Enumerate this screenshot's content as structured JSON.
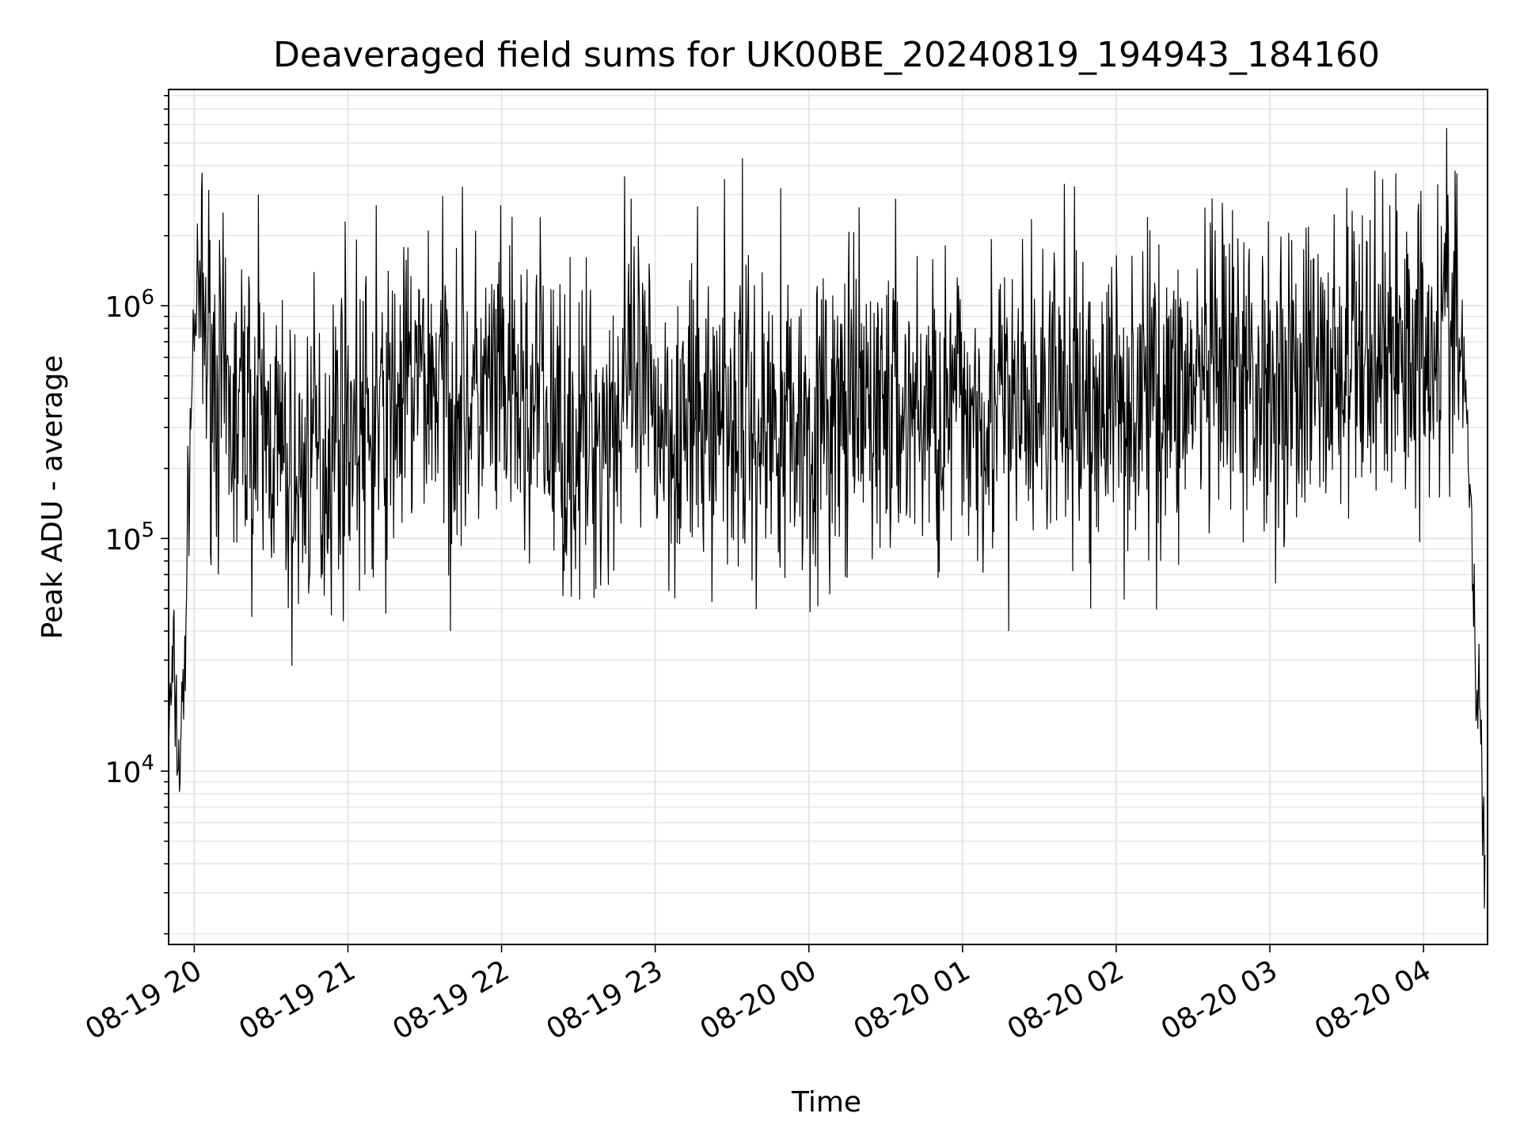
{
  "chart_data": {
    "type": "line",
    "title": "Deaveraged field sums for UK00BE_20240819_194943_184160",
    "xlabel": "Time",
    "ylabel": "Peak ADU - average",
    "yscale": "log",
    "ylim": [
      1800,
      8500000
    ],
    "xlim": [
      "2024-08-19 19:50",
      "2024-08-20 04:25"
    ],
    "x_ticks": [
      {
        "label": "08-19 20",
        "time": "2024-08-19 20:00"
      },
      {
        "label": "08-19 21",
        "time": "2024-08-19 21:00"
      },
      {
        "label": "08-19 22",
        "time": "2024-08-19 22:00"
      },
      {
        "label": "08-19 23",
        "time": "2024-08-19 23:00"
      },
      {
        "label": "08-20 00",
        "time": "2024-08-20 00:00"
      },
      {
        "label": "08-20 01",
        "time": "2024-08-20 01:00"
      },
      {
        "label": "08-20 02",
        "time": "2024-08-20 02:00"
      },
      {
        "label": "08-20 03",
        "time": "2024-08-20 03:00"
      },
      {
        "label": "08-20 04",
        "time": "2024-08-20 04:00"
      }
    ],
    "y_ticks": [
      {
        "base": "10",
        "exp": "4",
        "value": 10000
      },
      {
        "base": "10",
        "exp": "5",
        "value": 100000
      },
      {
        "base": "10",
        "exp": "6",
        "value": 1000000
      }
    ],
    "grid": true,
    "line_color": "#000000",
    "grid_color": "#e6e6e6",
    "series": [
      {
        "x": [
          "2024-08-19 19:50",
          "2024-08-19 19:52",
          "2024-08-19 19:54",
          "2024-08-19 19:56",
          "2024-08-19 19:58",
          "2024-08-19 20:00",
          "2024-08-19 20:02",
          "2024-08-19 20:05",
          "2024-08-19 20:08",
          "2024-08-19 20:12",
          "2024-08-19 20:16",
          "2024-08-19 20:20",
          "2024-08-19 20:25",
          "2024-08-19 20:30",
          "2024-08-19 20:35",
          "2024-08-19 20:40",
          "2024-08-19 20:45",
          "2024-08-19 20:50",
          "2024-08-19 20:55",
          "2024-08-19 21:00",
          "2024-08-19 21:05",
          "2024-08-19 21:10",
          "2024-08-19 21:15",
          "2024-08-19 21:20",
          "2024-08-19 21:30",
          "2024-08-19 21:40",
          "2024-08-19 21:50",
          "2024-08-19 22:00",
          "2024-08-19 22:10",
          "2024-08-19 22:20",
          "2024-08-19 22:30",
          "2024-08-19 22:40",
          "2024-08-19 22:50",
          "2024-08-19 23:00",
          "2024-08-19 23:10",
          "2024-08-19 23:20",
          "2024-08-19 23:30",
          "2024-08-19 23:40",
          "2024-08-19 23:50",
          "2024-08-20 00:00",
          "2024-08-20 00:10",
          "2024-08-20 00:20",
          "2024-08-20 00:30",
          "2024-08-20 00:40",
          "2024-08-20 00:50",
          "2024-08-20 01:00",
          "2024-08-20 01:10",
          "2024-08-20 01:20",
          "2024-08-20 01:30",
          "2024-08-20 01:40",
          "2024-08-20 01:50",
          "2024-08-20 02:00",
          "2024-08-20 02:10",
          "2024-08-20 02:20",
          "2024-08-20 02:30",
          "2024-08-20 02:40",
          "2024-08-20 02:50",
          "2024-08-20 03:00",
          "2024-08-20 03:10",
          "2024-08-20 03:20",
          "2024-08-20 03:30",
          "2024-08-20 03:40",
          "2024-08-20 03:50",
          "2024-08-20 04:00",
          "2024-08-20 04:05",
          "2024-08-20 04:10",
          "2024-08-20 04:15",
          "2024-08-20 04:18",
          "2024-08-20 04:20",
          "2024-08-20 04:22",
          "2024-08-20 04:24"
        ],
        "y": [
          15000,
          28000,
          10000,
          22000,
          200000,
          900000,
          1000000,
          700000,
          500000,
          350000,
          300000,
          400000,
          250000,
          300000,
          200000,
          150000,
          250000,
          200000,
          300000,
          350000,
          300000,
          250000,
          300000,
          400000,
          500000,
          450000,
          400000,
          400000,
          350000,
          300000,
          250000,
          300000,
          400000,
          350000,
          300000,
          320000,
          350000,
          300000,
          330000,
          300000,
          320000,
          350000,
          380000,
          360000,
          350000,
          370000,
          380000,
          350000,
          380000,
          400000,
          380000,
          400000,
          420000,
          430000,
          450000,
          460000,
          470000,
          480000,
          500000,
          520000,
          550000,
          600000,
          650000,
          700000,
          800000,
          900000,
          600000,
          200000,
          30000,
          18000,
          3000
        ]
      }
    ],
    "spikes": [
      {
        "x": "2024-08-19 20:25",
        "y": 3000000
      },
      {
        "x": "2024-08-19 20:59",
        "y": 2300000
      },
      {
        "x": "2024-08-19 21:11",
        "y": 2700000
      },
      {
        "x": "2024-08-19 21:40",
        "y": 40000
      },
      {
        "x": "2024-08-19 22:15",
        "y": 2400000
      },
      {
        "x": "2024-08-19 22:48",
        "y": 3600000
      },
      {
        "x": "2024-08-19 23:27",
        "y": 3500000
      },
      {
        "x": "2024-08-19 23:34",
        "y": 4300000
      },
      {
        "x": "2024-08-19 23:49",
        "y": 3200000
      },
      {
        "x": "2024-08-20 01:18",
        "y": 40000
      },
      {
        "x": "2024-08-20 01:50",
        "y": 50000
      },
      {
        "x": "2024-08-20 03:41",
        "y": 3800000
      },
      {
        "x": "2024-08-20 03:44",
        "y": 3500000
      },
      {
        "x": "2024-08-20 04:09",
        "y": 5800000
      },
      {
        "x": "2024-08-20 04:13",
        "y": 3700000
      }
    ]
  }
}
